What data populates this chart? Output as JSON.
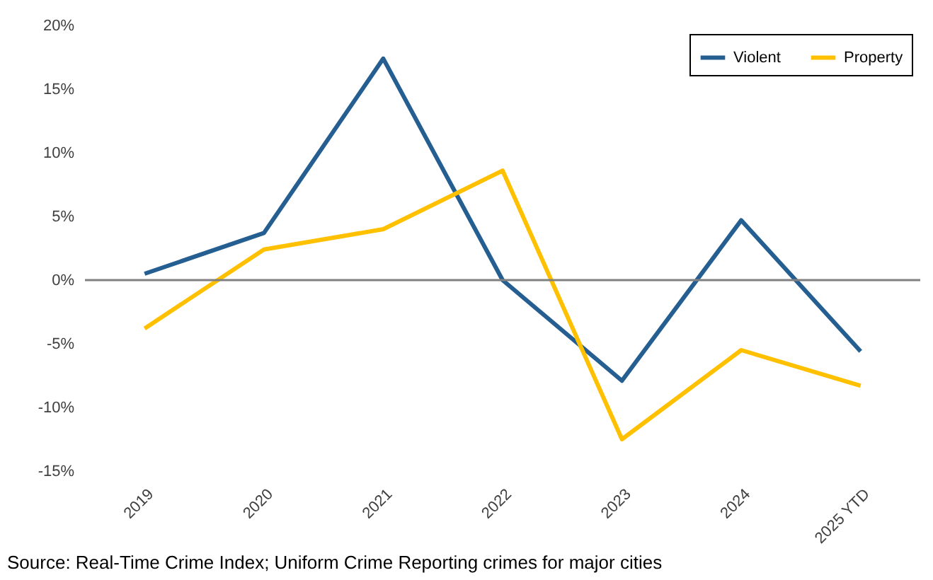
{
  "chart_data": {
    "type": "line",
    "categories": [
      "2019",
      "2020",
      "2021",
      "2022",
      "2023",
      "2024",
      "2025 YTD"
    ],
    "series": [
      {
        "name": "Violent",
        "color": "#255e91",
        "values": [
          0.5,
          3.7,
          17.4,
          0,
          -7.9,
          4.7,
          -5.6
        ]
      },
      {
        "name": "Property",
        "color": "#ffc000",
        "values": [
          -3.8,
          2.4,
          4.0,
          8.6,
          -12.5,
          -5.5,
          -8.3
        ]
      }
    ],
    "ylim": [
      -15,
      20
    ],
    "yticks": [
      {
        "value": -15,
        "label": "-15%"
      },
      {
        "value": -10,
        "label": "-10%"
      },
      {
        "value": -5,
        "label": "-5%"
      },
      {
        "value": 0,
        "label": "0%"
      },
      {
        "value": 5,
        "label": "5%"
      },
      {
        "value": 10,
        "label": "10%"
      },
      {
        "value": 15,
        "label": "15%"
      },
      {
        "value": 20,
        "label": "20%"
      }
    ],
    "ref_lines": [
      {
        "axis": "y",
        "value": 0,
        "color": "#808080"
      }
    ],
    "grid": false,
    "legend": "top right",
    "marker": "none",
    "line_style": "solid",
    "annotations": [
      "Source: Real-Time Crime Index; Uniform Crime Reporting crimes for major cities"
    ]
  }
}
